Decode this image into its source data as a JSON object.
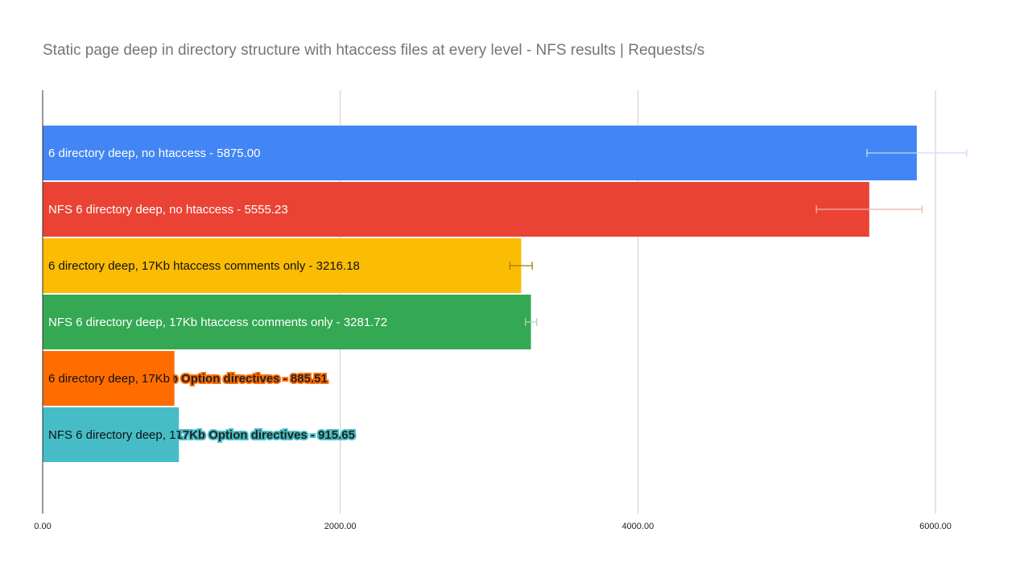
{
  "chart_data": {
    "type": "bar",
    "orientation": "horizontal",
    "title": "Static page deep in directory structure with htaccess files at every level - NFS results | Requests/s",
    "xlabel": "",
    "ylabel": "",
    "xlim": [
      0,
      6500
    ],
    "ticks": [
      0,
      2000,
      4000,
      6000
    ],
    "tick_labels": [
      "0.00",
      "2000.00",
      "4000.00",
      "6000.00"
    ],
    "grid": true,
    "legend": "none",
    "bars": [
      {
        "label": "6 directory deep, no htaccess - 5875.00",
        "value": 5875.0,
        "err_low": 5540,
        "err_high": 6210,
        "color": "#4285f4",
        "label_color": "#ffffff",
        "err_color": "#c6dafc"
      },
      {
        "label": "NFS 6 directory deep, no htaccess - 5555.23",
        "value": 5555.23,
        "err_low": 5200,
        "err_high": 5910,
        "color": "#ea4335",
        "label_color": "#ffffff",
        "err_color": "#f4b0aa"
      },
      {
        "label": "6 directory deep, 17Kb htaccess comments only - 3216.18",
        "value": 3216.18,
        "err_low": 3140,
        "err_high": 3290,
        "color": "#fbbc04",
        "label_color": "#111111",
        "err_color": "#a07a06"
      },
      {
        "label": "NFS 6 directory deep, 17Kb htaccess comments only - 3281.72",
        "value": 3281.72,
        "err_low": 3245,
        "err_high": 3320,
        "color": "#34a853",
        "label_color": "#ffffff",
        "err_color": "#a8dcb5"
      },
      {
        "label": "6 directory deep, 17Kb Option directives - 885.51",
        "value": 885.51,
        "err_low": 880,
        "err_high": 892,
        "color": "#ff6d01",
        "label_color": "#111111",
        "err_color": "#b04d00"
      },
      {
        "label": "NFS 6 directory deep, 17Kb Option directives - 915.65",
        "value": 915.65,
        "err_low": 910,
        "err_high": 922,
        "color": "#46bdc6",
        "label_color": "#111111",
        "err_color": "#2a8c94"
      }
    ]
  }
}
